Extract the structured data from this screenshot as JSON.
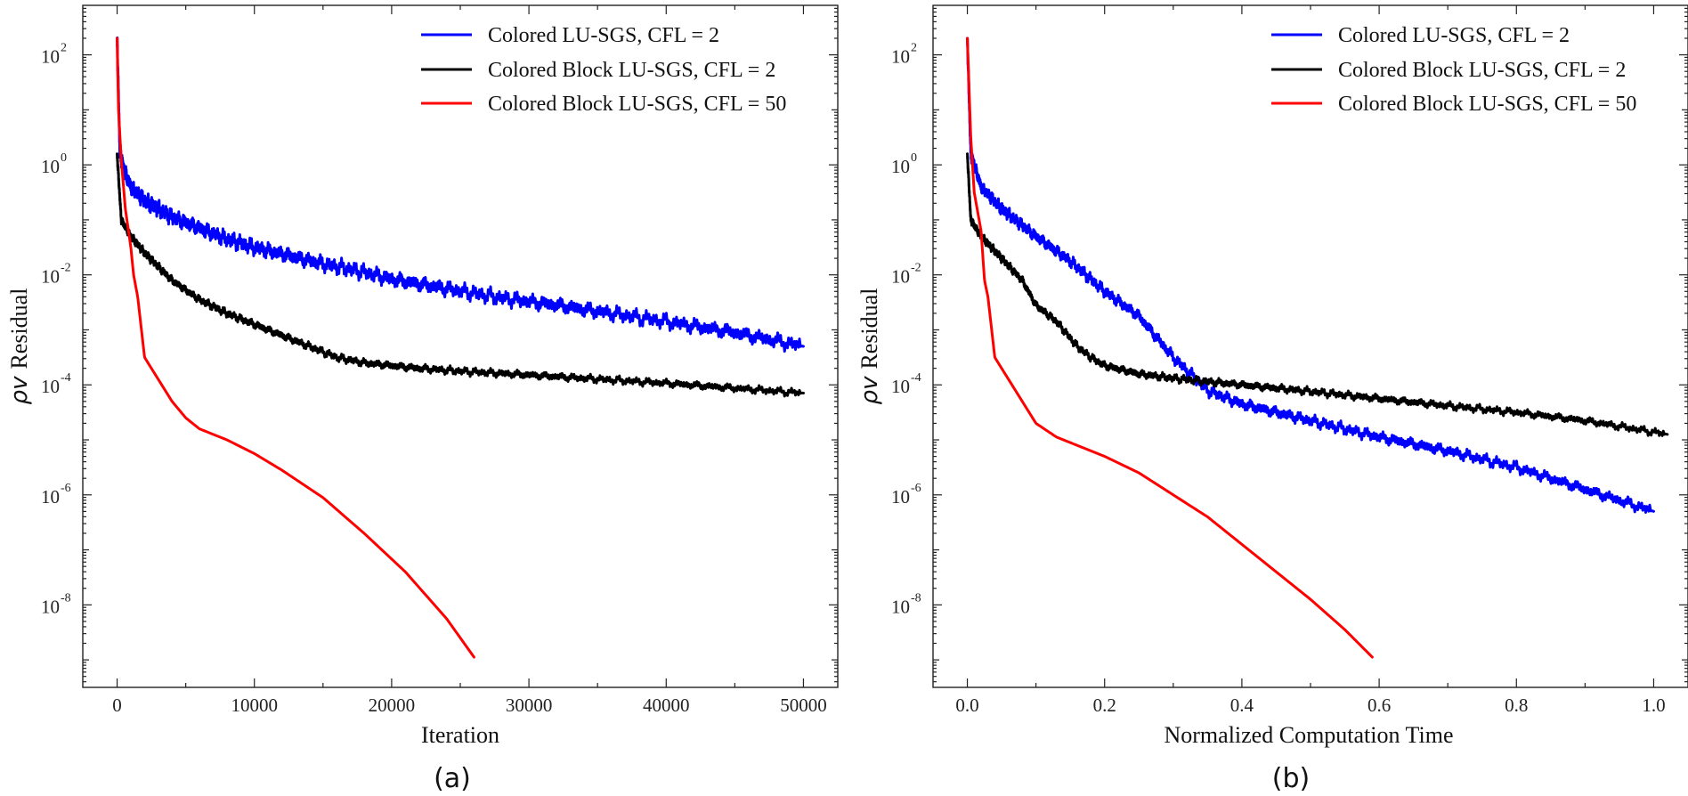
{
  "chart_data": [
    {
      "type": "line",
      "panel": "(a)",
      "xlabel": "Iteration",
      "ylabel_symbol": "ρv",
      "ylabel_text": "Residual",
      "xlim": [
        -2500,
        52500
      ],
      "ylim_log10": [
        -9.5,
        2.9
      ],
      "xticks": [
        0,
        10000,
        20000,
        30000,
        40000,
        50000
      ],
      "xtick_labels": [
        "0",
        "10000",
        "20000",
        "30000",
        "40000",
        "50000"
      ],
      "yticks_log10": [
        2,
        0,
        -2,
        -4,
        -6,
        -8
      ],
      "ytick_mantissa": "10",
      "ytick_exponents": [
        "2",
        "0",
        "-2",
        "-4",
        "-6",
        "-8"
      ],
      "legend_position": "top-right",
      "series": [
        {
          "name": "Colored LU-SGS, CFL = 2",
          "color": "#0000ff",
          "noise_log10": 0.16,
          "points": [
            [
              0,
              2.3
            ],
            [
              200,
              0.25
            ],
            [
              500,
              -0.1
            ],
            [
              1000,
              -0.4
            ],
            [
              2000,
              -0.65
            ],
            [
              4000,
              -0.95
            ],
            [
              6000,
              -1.15
            ],
            [
              8000,
              -1.35
            ],
            [
              10000,
              -1.5
            ],
            [
              12000,
              -1.62
            ],
            [
              15000,
              -1.8
            ],
            [
              18000,
              -1.95
            ],
            [
              20000,
              -2.08
            ],
            [
              24000,
              -2.25
            ],
            [
              28000,
              -2.42
            ],
            [
              32000,
              -2.55
            ],
            [
              36000,
              -2.7
            ],
            [
              40000,
              -2.85
            ],
            [
              45000,
              -3.05
            ],
            [
              50000,
              -3.3
            ]
          ]
        },
        {
          "name": "Colored Block LU-SGS, CFL = 2",
          "color": "#000000",
          "noise_log10": 0.08,
          "points": [
            [
              0,
              0.2
            ],
            [
              300,
              -1.0
            ],
            [
              1000,
              -1.3
            ],
            [
              2000,
              -1.6
            ],
            [
              4000,
              -2.1
            ],
            [
              6000,
              -2.45
            ],
            [
              8000,
              -2.7
            ],
            [
              10000,
              -2.9
            ],
            [
              12000,
              -3.1
            ],
            [
              14000,
              -3.3
            ],
            [
              16000,
              -3.5
            ],
            [
              18000,
              -3.6
            ],
            [
              20000,
              -3.65
            ],
            [
              22000,
              -3.7
            ],
            [
              25000,
              -3.75
            ],
            [
              30000,
              -3.82
            ],
            [
              40000,
              -3.97
            ],
            [
              50000,
              -4.15
            ]
          ]
        },
        {
          "name": "Colored Block LU-SGS, CFL = 50",
          "color": "#ff0000",
          "noise_log10": 0,
          "points": [
            [
              0,
              2.3
            ],
            [
              100,
              1.0
            ],
            [
              300,
              0.1
            ],
            [
              600,
              -0.8
            ],
            [
              1000,
              -1.5
            ],
            [
              1200,
              -2.0
            ],
            [
              1500,
              -2.4
            ],
            [
              2000,
              -3.5
            ],
            [
              3000,
              -3.9
            ],
            [
              4000,
              -4.3
            ],
            [
              5000,
              -4.6
            ],
            [
              6000,
              -4.8
            ],
            [
              8000,
              -5.0
            ],
            [
              10000,
              -5.25
            ],
            [
              12000,
              -5.55
            ],
            [
              15000,
              -6.05
            ],
            [
              18000,
              -6.7
            ],
            [
              21000,
              -7.4
            ],
            [
              24000,
              -8.25
            ],
            [
              26000,
              -8.95
            ]
          ]
        }
      ]
    },
    {
      "type": "line",
      "panel": "(b)",
      "xlabel": "Normalized Computation Time",
      "ylabel_symbol": "ρv",
      "ylabel_text": "Residual",
      "xlim": [
        -0.05,
        1.05
      ],
      "ylim_log10": [
        -9.5,
        2.9
      ],
      "xticks": [
        0,
        0.2,
        0.4,
        0.6,
        0.8,
        1.0
      ],
      "xtick_labels": [
        "0.0",
        "0.2",
        "0.4",
        "0.6",
        "0.8",
        "1.0"
      ],
      "yticks_log10": [
        2,
        0,
        -2,
        -4,
        -6,
        -8
      ],
      "ytick_mantissa": "10",
      "ytick_exponents": [
        "2",
        "0",
        "-2",
        "-4",
        "-6",
        "-8"
      ],
      "legend_position": "top-right",
      "series": [
        {
          "name": "Colored LU-SGS, CFL = 2",
          "color": "#0000ff",
          "noise_log10": 0.12,
          "points": [
            [
              0,
              2.3
            ],
            [
              0.005,
              0.2
            ],
            [
              0.02,
              -0.4
            ],
            [
              0.05,
              -0.8
            ],
            [
              0.1,
              -1.3
            ],
            [
              0.15,
              -1.75
            ],
            [
              0.2,
              -2.3
            ],
            [
              0.25,
              -2.75
            ],
            [
              0.3,
              -3.5
            ],
            [
              0.35,
              -4.1
            ],
            [
              0.4,
              -4.35
            ],
            [
              0.5,
              -4.65
            ],
            [
              0.6,
              -4.95
            ],
            [
              0.7,
              -5.2
            ],
            [
              0.8,
              -5.5
            ],
            [
              0.9,
              -5.9
            ],
            [
              1.0,
              -6.3
            ]
          ]
        },
        {
          "name": "Colored Block LU-SGS, CFL = 2",
          "color": "#000000",
          "noise_log10": 0.08,
          "points": [
            [
              0,
              0.2
            ],
            [
              0.005,
              -1.0
            ],
            [
              0.02,
              -1.3
            ],
            [
              0.05,
              -1.7
            ],
            [
              0.08,
              -2.1
            ],
            [
              0.1,
              -2.55
            ],
            [
              0.13,
              -2.85
            ],
            [
              0.16,
              -3.3
            ],
            [
              0.18,
              -3.5
            ],
            [
              0.2,
              -3.65
            ],
            [
              0.25,
              -3.8
            ],
            [
              0.3,
              -3.88
            ],
            [
              0.4,
              -4.0
            ],
            [
              0.5,
              -4.12
            ],
            [
              0.6,
              -4.25
            ],
            [
              0.7,
              -4.38
            ],
            [
              0.8,
              -4.5
            ],
            [
              0.9,
              -4.65
            ],
            [
              1.02,
              -4.9
            ]
          ]
        },
        {
          "name": "Colored Block LU-SGS, CFL = 50",
          "color": "#ff0000",
          "noise_log10": 0,
          "points": [
            [
              0,
              2.3
            ],
            [
              0.005,
              0.5
            ],
            [
              0.01,
              -0.5
            ],
            [
              0.02,
              -1.2
            ],
            [
              0.025,
              -2.1
            ],
            [
              0.03,
              -2.4
            ],
            [
              0.04,
              -3.5
            ],
            [
              0.06,
              -3.9
            ],
            [
              0.08,
              -4.3
            ],
            [
              0.1,
              -4.7
            ],
            [
              0.13,
              -4.95
            ],
            [
              0.17,
              -5.15
            ],
            [
              0.2,
              -5.3
            ],
            [
              0.25,
              -5.6
            ],
            [
              0.3,
              -6.0
            ],
            [
              0.35,
              -6.4
            ],
            [
              0.4,
              -6.9
            ],
            [
              0.45,
              -7.4
            ],
            [
              0.5,
              -7.9
            ],
            [
              0.55,
              -8.45
            ],
            [
              0.59,
              -8.95
            ]
          ]
        }
      ]
    }
  ]
}
